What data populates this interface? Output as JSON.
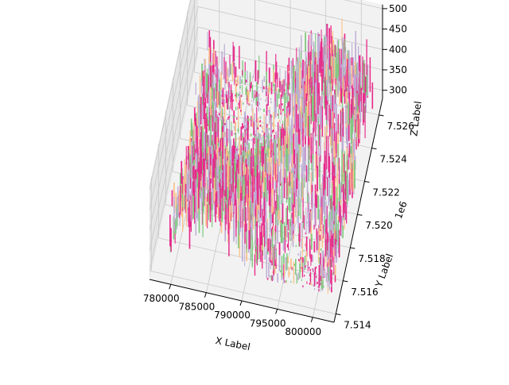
{
  "chart_data": {
    "type": "3d-surface",
    "title": "",
    "xlabel": "X Label",
    "ylabel": "Y Label",
    "zlabel": "Z Label",
    "y_offset_text": "1e6",
    "x_ticks": [
      "780000",
      "785000",
      "790000",
      "795000",
      "800000"
    ],
    "y_ticks": [
      "7.514",
      "7.516",
      "7.518",
      "7.520",
      "7.522",
      "7.524",
      "7.526"
    ],
    "z_ticks": [
      "300",
      "350",
      "400",
      "450",
      "500"
    ],
    "xlim": [
      777000,
      803000
    ],
    "ylim": [
      7.5135,
      7.527
    ],
    "zlim": [
      280,
      510
    ],
    "grid": true,
    "colors": {
      "pane_floor": "#f2f2f2",
      "pane_wall": "#e6e6e6",
      "grid": "#c8c8c8",
      "surface_magenta": "#e7298a",
      "surface_lavender": "#beaed4",
      "surface_green": "#7fc97f",
      "surface_orange": "#fdc086"
    }
  }
}
